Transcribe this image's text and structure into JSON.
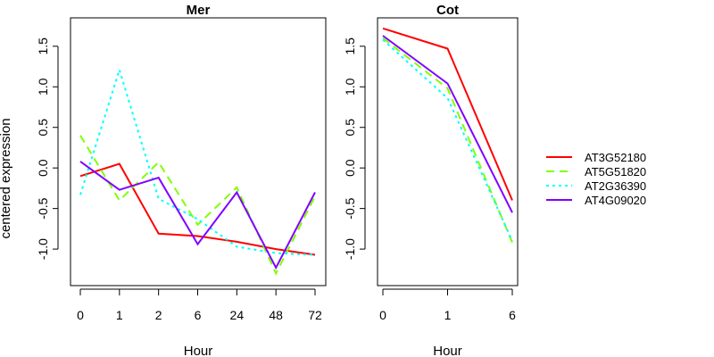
{
  "chart_data": [
    {
      "type": "line",
      "title": "Mer",
      "xlabel": "Hour",
      "ylabel": "centered expression",
      "categories": [
        "0",
        "1",
        "2",
        "6",
        "24",
        "48",
        "72"
      ],
      "ylim": [
        -1.45,
        1.85
      ],
      "yticks": [
        "-1.0",
        "-0.5",
        "0.0",
        "0.5",
        "1.0",
        "1.5"
      ],
      "ytick_values": [
        -1.0,
        -0.5,
        0.0,
        0.5,
        1.0,
        1.5
      ],
      "series": [
        {
          "name": "AT3G52180",
          "color": "#ff0000",
          "dash": "solid",
          "values": [
            -0.1,
            0.05,
            -0.81,
            -0.84,
            -0.91,
            -1.0,
            -1.07
          ]
        },
        {
          "name": "AT5G51820",
          "color": "#80ff00",
          "dash": "dashed",
          "values": [
            0.4,
            -0.4,
            0.07,
            -0.7,
            -0.24,
            -1.3,
            -0.35
          ]
        },
        {
          "name": "AT2G36390",
          "color": "#00ffff",
          "dash": "dotted",
          "values": [
            -0.33,
            1.21,
            -0.38,
            -0.63,
            -0.97,
            -1.05,
            -1.07
          ]
        },
        {
          "name": "AT4G09020",
          "color": "#8000ff",
          "dash": "solid",
          "values": [
            0.08,
            -0.27,
            -0.12,
            -0.94,
            -0.3,
            -1.23,
            -0.3
          ]
        }
      ]
    },
    {
      "type": "line",
      "title": "Cot",
      "xlabel": "Hour",
      "ylabel": "",
      "categories": [
        "0",
        "1",
        "6"
      ],
      "ylim": [
        -1.45,
        1.85
      ],
      "yticks": [
        "-1.0",
        "-0.5",
        "0.0",
        "0.5",
        "1.0",
        "1.5"
      ],
      "ytick_values": [
        -1.0,
        -0.5,
        0.0,
        0.5,
        1.0,
        1.5
      ],
      "series": [
        {
          "name": "AT3G52180",
          "color": "#ff0000",
          "dash": "solid",
          "values": [
            1.72,
            1.47,
            -0.4
          ]
        },
        {
          "name": "AT5G51820",
          "color": "#80ff00",
          "dash": "dashed",
          "values": [
            1.6,
            0.98,
            -0.92
          ]
        },
        {
          "name": "AT2G36390",
          "color": "#00ffff",
          "dash": "dotted",
          "values": [
            1.58,
            0.86,
            -0.9
          ]
        },
        {
          "name": "AT4G09020",
          "color": "#8000ff",
          "dash": "solid",
          "values": [
            1.63,
            1.04,
            -0.55
          ]
        }
      ]
    }
  ],
  "legend": {
    "placement": "right",
    "entries": [
      {
        "label": "AT3G52180",
        "color": "#ff0000",
        "dash": "solid"
      },
      {
        "label": "AT5G51820",
        "color": "#80ff00",
        "dash": "dashed"
      },
      {
        "label": "AT2G36390",
        "color": "#00ffff",
        "dash": "dotted"
      },
      {
        "label": "AT4G09020",
        "color": "#8000ff",
        "dash": "solid"
      }
    ]
  }
}
